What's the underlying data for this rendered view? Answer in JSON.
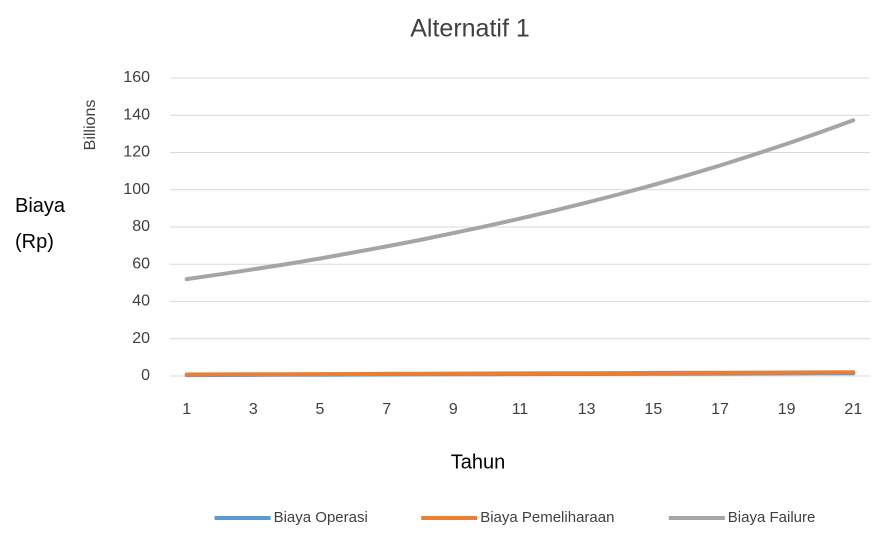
{
  "chart_data": {
    "type": "line",
    "title": "Alternatif 1",
    "xlabel": "Tahun",
    "ylabel": "Biaya (Rp)",
    "yunit": "Billions",
    "categories": [
      "1",
      null,
      "3",
      null,
      "5",
      null,
      "7",
      null,
      "9",
      null,
      "11",
      null,
      "13",
      null,
      "15",
      null,
      "17",
      null,
      "19",
      null,
      "21"
    ],
    "series": [
      {
        "name": "Biaya Operasi",
        "color": "#5b9bd5",
        "values": [
          0.5,
          0.55,
          0.6,
          0.65,
          0.7,
          0.75,
          0.8,
          0.85,
          0.9,
          0.95,
          1.0,
          1.05,
          1.1,
          1.15,
          1.2,
          1.25,
          1.3,
          1.35,
          1.4,
          1.45,
          1.5
        ]
      },
      {
        "name": "Biaya Pemeliharaan",
        "color": "#ed7d31",
        "values": [
          0.8,
          0.86,
          0.92,
          0.98,
          1.04,
          1.1,
          1.16,
          1.22,
          1.28,
          1.34,
          1.4,
          1.46,
          1.52,
          1.58,
          1.64,
          1.7,
          1.76,
          1.82,
          1.88,
          1.94,
          2.0
        ]
      },
      {
        "name": "Biaya Failure",
        "color": "#a5a5a5",
        "values": [
          52.0,
          54.6,
          57.3,
          60.1,
          63.1,
          66.3,
          69.6,
          73.0,
          76.7,
          80.5,
          84.5,
          88.7,
          93.1,
          97.7,
          102.6,
          107.7,
          113.0,
          118.7,
          124.6,
          130.8,
          137.3
        ]
      }
    ],
    "ylim": [
      0,
      160
    ],
    "yticks": [
      0,
      20,
      40,
      60,
      80,
      100,
      120,
      140,
      160
    ],
    "grid": true,
    "legend": "bottom"
  }
}
